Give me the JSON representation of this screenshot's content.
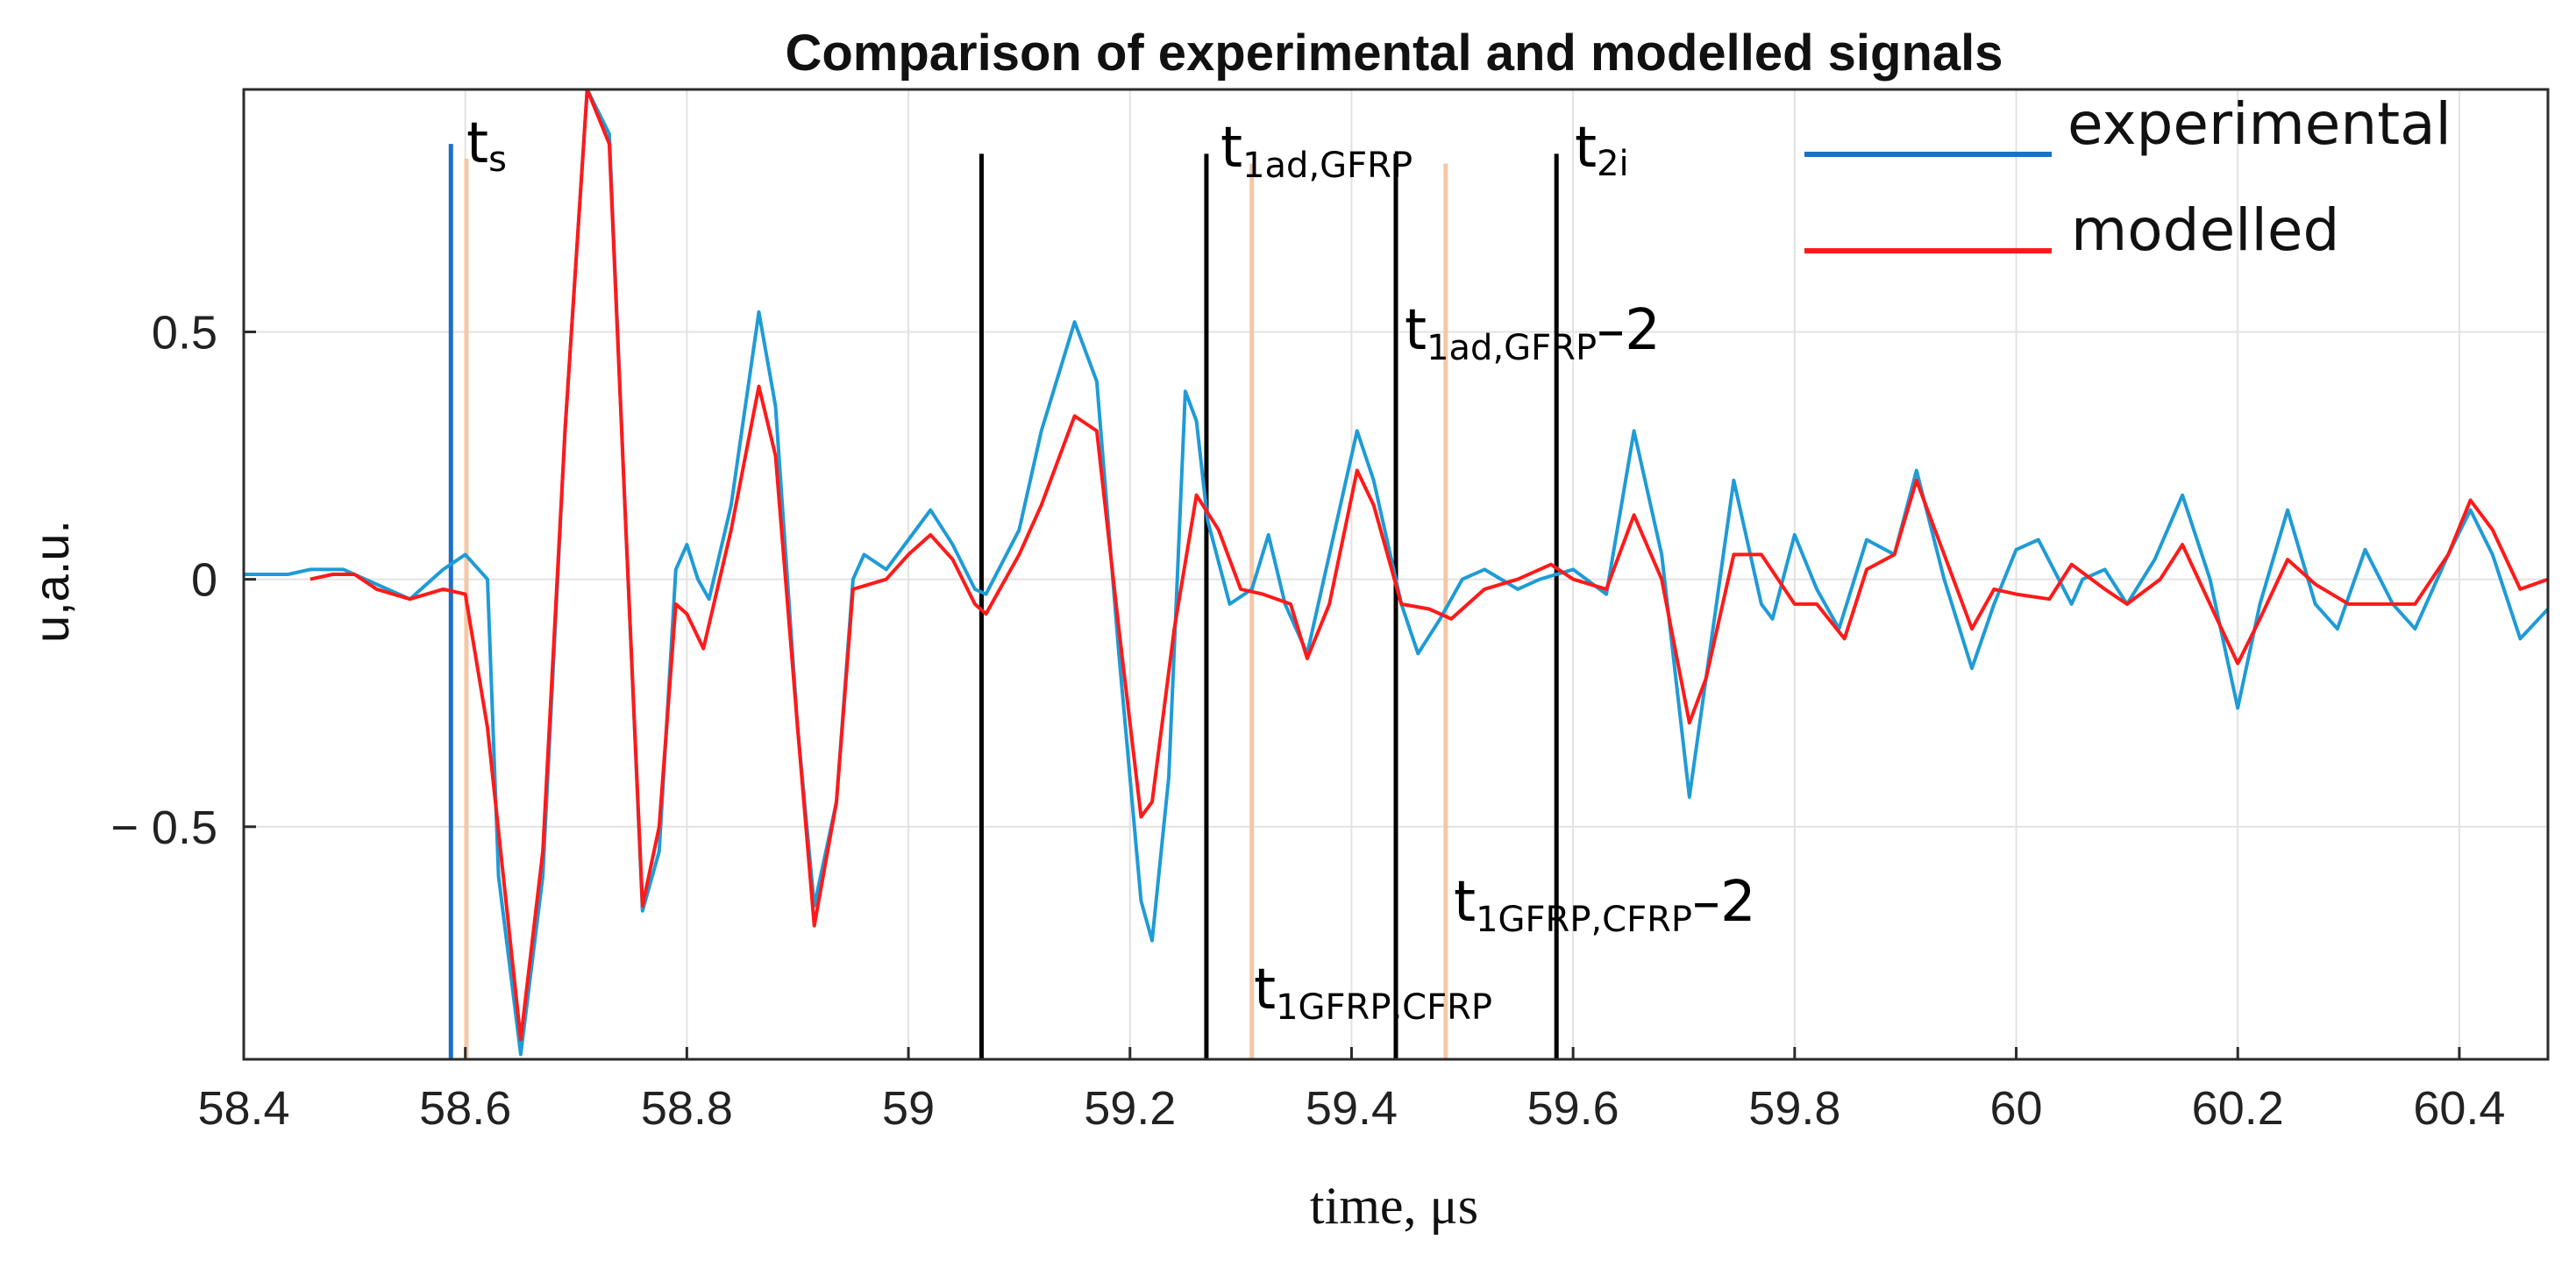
{
  "chart_data": {
    "type": "line",
    "title": "Comparison of experimental and modelled signals",
    "xlabel": "time, μs",
    "ylabel": "u,a.u.",
    "xlim": [
      58.4,
      60.48
    ],
    "ylim": [
      -0.97,
      0.99
    ],
    "x_ticks": [
      58.4,
      58.6,
      58.8,
      59.0,
      59.2,
      59.4,
      59.6,
      59.8,
      60.0,
      60.2,
      60.4
    ],
    "x_tick_labels": [
      "58.4",
      "58.6",
      "58.8",
      "59",
      "59.2",
      "59.4",
      "59.6",
      "59.8",
      "60",
      "60.2",
      "60.4"
    ],
    "y_ticks": [
      -0.5,
      0,
      0.5
    ],
    "y_tick_labels": [
      "− 0.5",
      "0",
      "0.5"
    ],
    "grid": true,
    "legend": {
      "position": "top-right",
      "entries": [
        "experimental",
        "modelled"
      ]
    },
    "series": [
      {
        "name": "experimental",
        "color": "#1f9bd6",
        "points": [
          [
            58.4,
            0.01
          ],
          [
            58.44,
            0.01
          ],
          [
            58.46,
            0.02
          ],
          [
            58.49,
            0.02
          ],
          [
            58.52,
            -0.01
          ],
          [
            58.55,
            -0.04
          ],
          [
            58.58,
            0.02
          ],
          [
            58.6,
            0.05
          ],
          [
            58.62,
            0.0
          ],
          [
            58.63,
            -0.6
          ],
          [
            58.65,
            -0.96
          ],
          [
            58.67,
            -0.6
          ],
          [
            58.69,
            0.3
          ],
          [
            58.71,
            0.99
          ],
          [
            58.73,
            0.9
          ],
          [
            58.745,
            0.1
          ],
          [
            58.76,
            -0.67
          ],
          [
            58.775,
            -0.55
          ],
          [
            58.79,
            0.02
          ],
          [
            58.8,
            0.07
          ],
          [
            58.81,
            0.0
          ],
          [
            58.82,
            -0.04
          ],
          [
            58.84,
            0.15
          ],
          [
            58.865,
            0.54
          ],
          [
            58.88,
            0.35
          ],
          [
            58.9,
            -0.3
          ],
          [
            58.915,
            -0.66
          ],
          [
            58.935,
            -0.45
          ],
          [
            58.95,
            0.0
          ],
          [
            58.96,
            0.05
          ],
          [
            58.98,
            0.02
          ],
          [
            59.0,
            0.08
          ],
          [
            59.02,
            0.14
          ],
          [
            59.04,
            0.07
          ],
          [
            59.06,
            -0.02
          ],
          [
            59.07,
            -0.03
          ],
          [
            59.1,
            0.1
          ],
          [
            59.12,
            0.3
          ],
          [
            59.15,
            0.52
          ],
          [
            59.17,
            0.4
          ],
          [
            59.19,
            -0.15
          ],
          [
            59.21,
            -0.65
          ],
          [
            59.22,
            -0.73
          ],
          [
            59.235,
            -0.4
          ],
          [
            59.25,
            0.38
          ],
          [
            59.26,
            0.32
          ],
          [
            59.27,
            0.12
          ],
          [
            59.29,
            -0.05
          ],
          [
            59.31,
            -0.02
          ],
          [
            59.325,
            0.09
          ],
          [
            59.34,
            -0.05
          ],
          [
            59.36,
            -0.15
          ],
          [
            59.38,
            0.05
          ],
          [
            59.405,
            0.3
          ],
          [
            59.42,
            0.2
          ],
          [
            59.445,
            -0.05
          ],
          [
            59.46,
            -0.15
          ],
          [
            59.48,
            -0.08
          ],
          [
            59.5,
            0.0
          ],
          [
            59.52,
            0.02
          ],
          [
            59.55,
            -0.02
          ],
          [
            59.57,
            0.0
          ],
          [
            59.6,
            0.02
          ],
          [
            59.63,
            -0.03
          ],
          [
            59.655,
            0.3
          ],
          [
            59.68,
            0.05
          ],
          [
            59.705,
            -0.44
          ],
          [
            59.72,
            -0.2
          ],
          [
            59.745,
            0.2
          ],
          [
            59.77,
            -0.05
          ],
          [
            59.78,
            -0.08
          ],
          [
            59.8,
            0.09
          ],
          [
            59.82,
            -0.02
          ],
          [
            59.84,
            -0.1
          ],
          [
            59.865,
            0.08
          ],
          [
            59.89,
            0.05
          ],
          [
            59.91,
            0.22
          ],
          [
            59.935,
            0.0
          ],
          [
            59.96,
            -0.18
          ],
          [
            59.98,
            -0.05
          ],
          [
            60.0,
            0.06
          ],
          [
            60.02,
            0.08
          ],
          [
            60.05,
            -0.05
          ],
          [
            60.06,
            0.0
          ],
          [
            60.08,
            0.02
          ],
          [
            60.1,
            -0.05
          ],
          [
            60.125,
            0.04
          ],
          [
            60.15,
            0.17
          ],
          [
            60.175,
            0.0
          ],
          [
            60.2,
            -0.26
          ],
          [
            60.22,
            -0.05
          ],
          [
            60.245,
            0.14
          ],
          [
            60.27,
            -0.05
          ],
          [
            60.29,
            -0.1
          ],
          [
            60.315,
            0.06
          ],
          [
            60.34,
            -0.05
          ],
          [
            60.36,
            -0.1
          ],
          [
            60.39,
            0.05
          ],
          [
            60.41,
            0.14
          ],
          [
            60.43,
            0.05
          ],
          [
            60.455,
            -0.12
          ],
          [
            60.48,
            -0.06
          ]
        ]
      },
      {
        "name": "modelled",
        "color": "#ff1a1a",
        "points": [
          [
            58.46,
            0.0
          ],
          [
            58.48,
            0.01
          ],
          [
            58.5,
            0.01
          ],
          [
            58.52,
            -0.02
          ],
          [
            58.55,
            -0.04
          ],
          [
            58.58,
            -0.02
          ],
          [
            58.6,
            -0.03
          ],
          [
            58.62,
            -0.3
          ],
          [
            58.65,
            -0.93
          ],
          [
            58.67,
            -0.55
          ],
          [
            58.69,
            0.3
          ],
          [
            58.71,
            0.99
          ],
          [
            58.73,
            0.88
          ],
          [
            58.745,
            0.1
          ],
          [
            58.76,
            -0.66
          ],
          [
            58.775,
            -0.5
          ],
          [
            58.79,
            -0.05
          ],
          [
            58.8,
            -0.07
          ],
          [
            58.815,
            -0.14
          ],
          [
            58.84,
            0.1
          ],
          [
            58.865,
            0.39
          ],
          [
            58.88,
            0.25
          ],
          [
            58.9,
            -0.3
          ],
          [
            58.915,
            -0.7
          ],
          [
            58.935,
            -0.45
          ],
          [
            58.95,
            -0.02
          ],
          [
            58.98,
            0.0
          ],
          [
            59.0,
            0.05
          ],
          [
            59.02,
            0.09
          ],
          [
            59.04,
            0.04
          ],
          [
            59.06,
            -0.05
          ],
          [
            59.07,
            -0.07
          ],
          [
            59.1,
            0.05
          ],
          [
            59.12,
            0.15
          ],
          [
            59.15,
            0.33
          ],
          [
            59.17,
            0.3
          ],
          [
            59.19,
            -0.1
          ],
          [
            59.21,
            -0.48
          ],
          [
            59.22,
            -0.45
          ],
          [
            59.24,
            -0.1
          ],
          [
            59.26,
            0.17
          ],
          [
            59.28,
            0.1
          ],
          [
            59.3,
            -0.02
          ],
          [
            59.32,
            -0.03
          ],
          [
            59.345,
            -0.05
          ],
          [
            59.36,
            -0.16
          ],
          [
            59.38,
            -0.05
          ],
          [
            59.405,
            0.22
          ],
          [
            59.42,
            0.15
          ],
          [
            59.445,
            -0.05
          ],
          [
            59.47,
            -0.06
          ],
          [
            59.49,
            -0.08
          ],
          [
            59.52,
            -0.02
          ],
          [
            59.55,
            0.0
          ],
          [
            59.58,
            0.03
          ],
          [
            59.6,
            0.0
          ],
          [
            59.63,
            -0.02
          ],
          [
            59.655,
            0.13
          ],
          [
            59.68,
            0.0
          ],
          [
            59.705,
            -0.29
          ],
          [
            59.72,
            -0.2
          ],
          [
            59.745,
            0.05
          ],
          [
            59.77,
            0.05
          ],
          [
            59.8,
            -0.05
          ],
          [
            59.82,
            -0.05
          ],
          [
            59.845,
            -0.12
          ],
          [
            59.865,
            0.02
          ],
          [
            59.89,
            0.05
          ],
          [
            59.91,
            0.2
          ],
          [
            59.935,
            0.05
          ],
          [
            59.96,
            -0.1
          ],
          [
            59.98,
            -0.02
          ],
          [
            60.0,
            -0.03
          ],
          [
            60.03,
            -0.04
          ],
          [
            60.05,
            0.03
          ],
          [
            60.08,
            -0.02
          ],
          [
            60.1,
            -0.05
          ],
          [
            60.13,
            0.0
          ],
          [
            60.15,
            0.07
          ],
          [
            60.175,
            -0.05
          ],
          [
            60.2,
            -0.17
          ],
          [
            60.22,
            -0.08
          ],
          [
            60.245,
            0.04
          ],
          [
            60.27,
            -0.01
          ],
          [
            60.3,
            -0.05
          ],
          [
            60.33,
            -0.05
          ],
          [
            60.36,
            -0.05
          ],
          [
            60.39,
            0.05
          ],
          [
            60.41,
            0.16
          ],
          [
            60.43,
            0.1
          ],
          [
            60.455,
            -0.02
          ],
          [
            60.48,
            0.0
          ]
        ]
      }
    ],
    "vertical_markers": [
      {
        "name": "ts-blue",
        "x": 58.587,
        "color": "#1f6fc8",
        "y_from": -0.97,
        "y_to": 0.88
      },
      {
        "name": "ts-peach",
        "x": 58.601,
        "color": "#f5c7a6",
        "y_from": -0.97,
        "y_to": 0.85
      },
      {
        "name": "black-1",
        "x": 59.066,
        "color": "#000000",
        "y_from": -0.97,
        "y_to": 0.86
      },
      {
        "name": "black-2",
        "x": 59.269,
        "color": "#000000",
        "y_from": -0.97,
        "y_to": 0.86
      },
      {
        "name": "peach-1",
        "x": 59.31,
        "color": "#f5c7a6",
        "y_from": -0.97,
        "y_to": 0.84
      },
      {
        "name": "black-3",
        "x": 59.44,
        "color": "#000000",
        "y_from": -0.97,
        "y_to": 0.86
      },
      {
        "name": "peach-2",
        "x": 59.485,
        "color": "#f5c7a6",
        "y_from": -0.97,
        "y_to": 0.84
      },
      {
        "name": "black-4",
        "x": 59.585,
        "color": "#000000",
        "y_from": -0.97,
        "y_to": 0.86
      }
    ],
    "annotations": [
      {
        "name": "label-ts",
        "base": "t",
        "sub": "s",
        "suffix": ""
      },
      {
        "name": "label-t1ad-gfrp",
        "base": "t",
        "sub": "1ad,GFRP",
        "suffix": ""
      },
      {
        "name": "label-t2i",
        "base": "t",
        "sub": "2i",
        "suffix": ""
      },
      {
        "name": "label-t1ad-gfrp-2",
        "base": "t",
        "sub": "1ad,GFRP",
        "suffix": "–2"
      },
      {
        "name": "label-t1gfrp-cfrp-2",
        "base": "t",
        "sub": "1GFRP,CFRP",
        "suffix": "–2"
      },
      {
        "name": "label-t1gfrp-cfrp",
        "base": "t",
        "sub": "1GFRP,CFRP",
        "suffix": ""
      }
    ]
  }
}
